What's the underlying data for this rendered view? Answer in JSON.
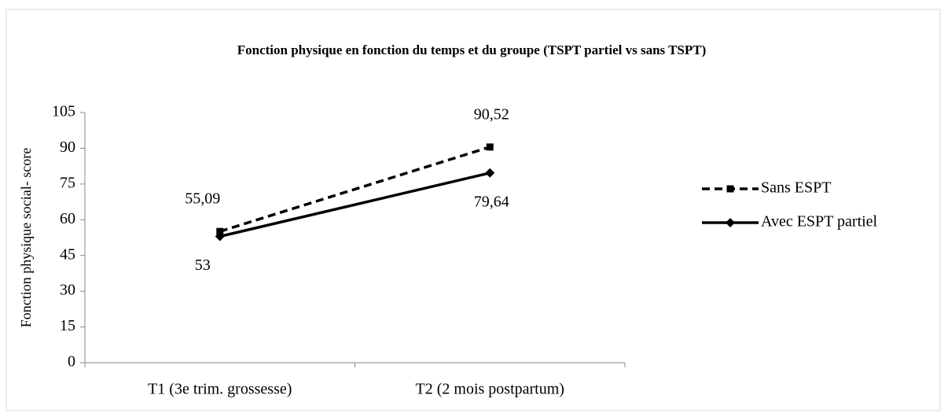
{
  "chart_data": {
    "type": "line",
    "title": "Fonction physique en fonction du temps et du groupe (TSPT partiel vs sans TSPT)",
    "y_label": "Fonction physique social- score",
    "categories": [
      "T1 (3e trim. grossesse)",
      "T2 (2 mois postpartum)"
    ],
    "series": [
      {
        "name": "Sans ESPT",
        "color": "#000000",
        "line_style": "dashed",
        "marker": "square",
        "values": [
          55.09,
          90.52
        ],
        "value_labels": [
          "55,09",
          "90,52"
        ]
      },
      {
        "name": "Avec ESPT partiel",
        "color": "#000000",
        "line_style": "solid",
        "marker": "diamond",
        "values": [
          53,
          79.64
        ],
        "value_labels": [
          "53",
          "79,64"
        ]
      }
    ],
    "ylim": [
      0,
      105
    ],
    "yticks": [
      0,
      15,
      30,
      45,
      60,
      75,
      90,
      105
    ],
    "grid": false,
    "legend": "right"
  }
}
